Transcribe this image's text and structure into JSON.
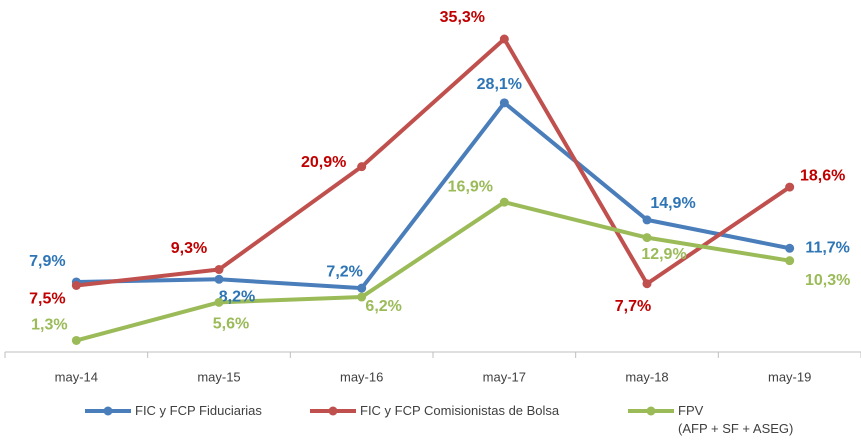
{
  "chart_data": {
    "type": "line",
    "categories": [
      "may-14",
      "may-15",
      "may-16",
      "may-17",
      "may-18",
      "may-19"
    ],
    "series": [
      {
        "name": "FIC y FCP Fiduciarias",
        "color": "#4a7ebb",
        "label_color": "#2e75b6",
        "values": [
          7.9,
          8.2,
          7.2,
          28.1,
          14.9,
          11.7
        ],
        "value_labels": [
          "7,9%",
          "8,2%",
          "7,2%",
          "28,1%",
          "14,9%",
          "11,7%"
        ]
      },
      {
        "name": "FIC y FCP Comisionistas de Bolsa",
        "color": "#c0504d",
        "label_color": "#c00000",
        "values": [
          7.5,
          9.3,
          20.9,
          35.3,
          7.7,
          18.6
        ],
        "value_labels": [
          "7,5%",
          "9,3%",
          "20,9%",
          "35,3%",
          "7,7%",
          "18,6%"
        ]
      },
      {
        "name": "FPV\n(AFP + SF + ASEG)",
        "color": "#9bbb59",
        "label_color": "#9bbb59",
        "values": [
          1.3,
          5.6,
          6.2,
          16.9,
          12.9,
          10.3
        ],
        "value_labels": [
          "1,3%",
          "5,6%",
          "6,2%",
          "16,9%",
          "12,9%",
          "10,3%"
        ]
      }
    ],
    "legend": "bottom"
  }
}
